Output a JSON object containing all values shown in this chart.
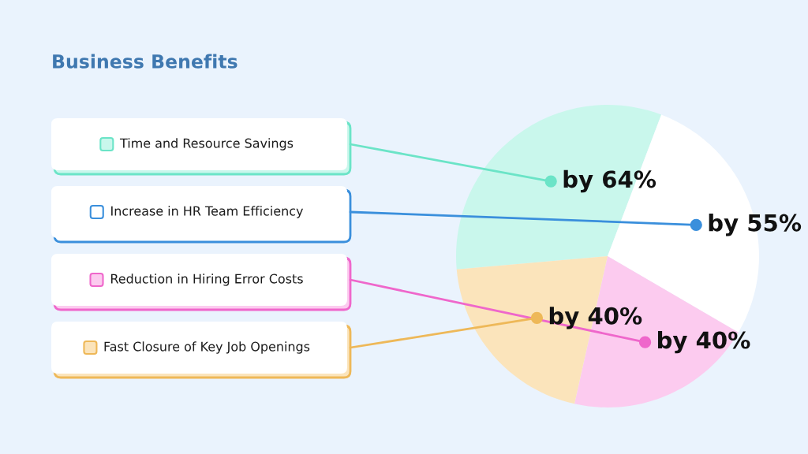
{
  "chart_data": {
    "type": "pie",
    "title": "Business Benefits",
    "categories": [
      "Time and Resource Savings",
      "Increase in HR Team Efficiency",
      "Reduction in Hiring Error Costs",
      "Fast Closure of Key Job Openings"
    ],
    "values": [
      64,
      55,
      40,
      40
    ],
    "colors": [
      "#c9f7ec",
      "#ffffff",
      "#fccbef",
      "#fbe4bb"
    ],
    "value_labels": [
      "by 64%",
      "by 55%",
      "by 40%",
      "by 40%"
    ],
    "legend": "left"
  }
}
